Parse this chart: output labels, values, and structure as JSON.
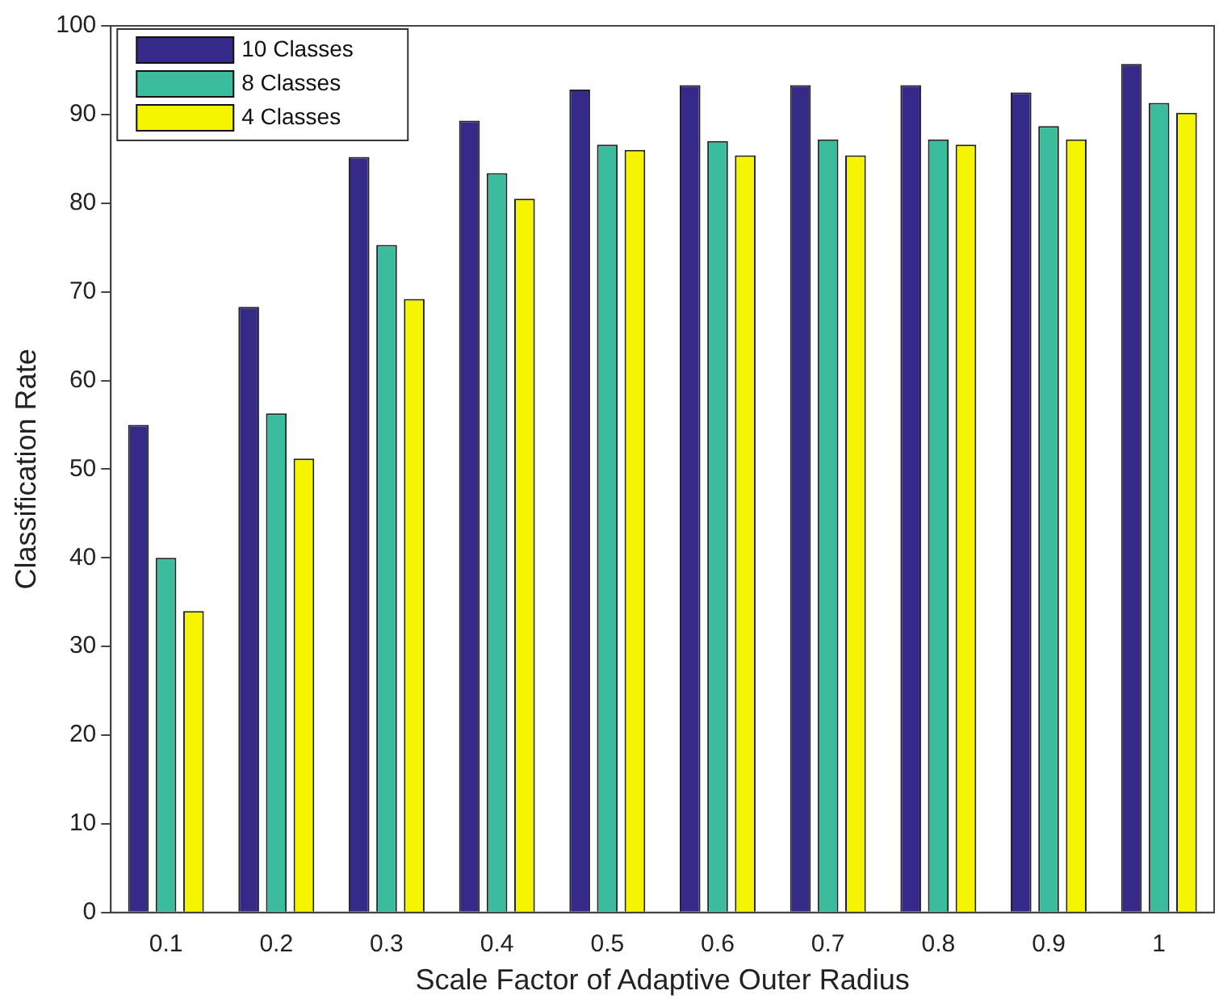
{
  "chart_data": {
    "type": "bar",
    "xlabel": "Scale Factor of Adaptive Outer Radius",
    "ylabel": "Classification Rate",
    "categories": [
      "0.1",
      "0.2",
      "0.3",
      "0.4",
      "0.5",
      "0.6",
      "0.7",
      "0.8",
      "0.9",
      "1"
    ],
    "series": [
      {
        "name": "10 Classes",
        "color": "#352a87",
        "values": [
          55,
          68.3,
          85.2,
          89.3,
          92.8,
          93.3,
          93.3,
          93.3,
          92.5,
          95.7
        ]
      },
      {
        "name": "8 Classes",
        "color": "#3bbc9c",
        "values": [
          40,
          56.3,
          75.3,
          83.4,
          86.6,
          87,
          87.2,
          87.2,
          88.7,
          91.3
        ]
      },
      {
        "name": "4 Classes",
        "color": "#f5f500",
        "values": [
          34,
          51.2,
          69.2,
          80.5,
          86,
          85.4,
          85.4,
          86.6,
          87.2,
          90.2
        ]
      }
    ],
    "ylim": [
      0,
      100
    ],
    "yticks": [
      0,
      10,
      20,
      30,
      40,
      50,
      60,
      70,
      80,
      90,
      100
    ],
    "grid": false,
    "legend": "top left"
  }
}
